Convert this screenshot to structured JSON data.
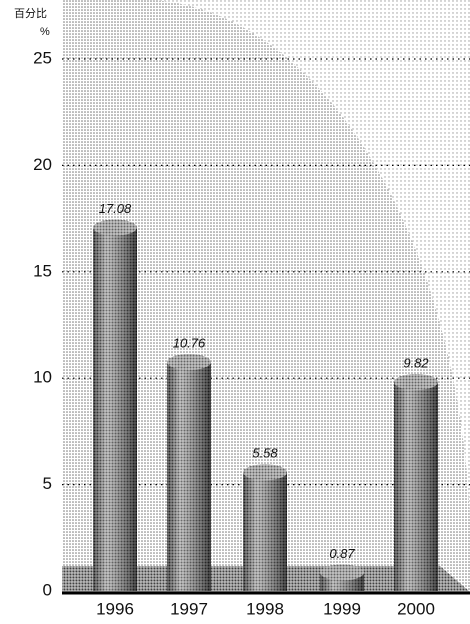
{
  "chart_data": {
    "type": "bar",
    "y_label": "百分比",
    "y_unit": "%",
    "categories": [
      "1996",
      "1997",
      "1998",
      "1999",
      "2000"
    ],
    "values": [
      17.08,
      10.76,
      5.58,
      0.87,
      9.82
    ],
    "color": "#555555",
    "ylim": [
      0,
      25
    ],
    "yticks": [
      0,
      5,
      10,
      15,
      20,
      25
    ],
    "grid": true
  }
}
